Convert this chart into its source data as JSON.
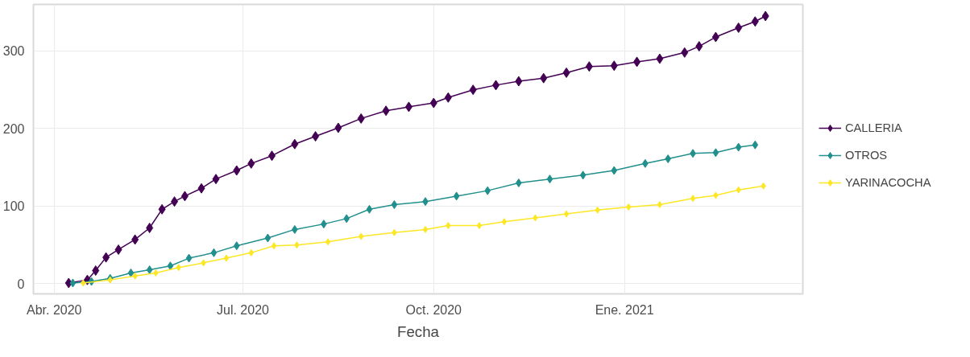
{
  "chart_data": {
    "type": "line",
    "xlabel": "Fecha",
    "marker": "diamond",
    "line_style": "solid",
    "grid": true,
    "legend": "right",
    "xlim": [
      "2020-03-22",
      "2021-03-28"
    ],
    "ylim": [
      -13,
      360
    ],
    "xticks": [
      {
        "value": "2020-04-01",
        "label": "Abr. 2020"
      },
      {
        "value": "2020-07-01",
        "label": "Jul. 2020"
      },
      {
        "value": "2020-10-01",
        "label": "Oct. 2020"
      },
      {
        "value": "2021-01-01",
        "label": "Ene. 2021"
      }
    ],
    "yticks": [
      0,
      100,
      200,
      300
    ],
    "series": [
      {
        "name": "CALLERIA",
        "color": "#440154",
        "x": [
          "2020-04-08",
          "2020-04-17",
          "2020-04-21",
          "2020-04-26",
          "2020-05-02",
          "2020-05-10",
          "2020-05-17",
          "2020-05-23",
          "2020-05-29",
          "2020-06-03",
          "2020-06-11",
          "2020-06-18",
          "2020-06-28",
          "2020-07-05",
          "2020-07-15",
          "2020-07-26",
          "2020-08-05",
          "2020-08-16",
          "2020-08-27",
          "2020-09-08",
          "2020-09-19",
          "2020-10-01",
          "2020-10-08",
          "2020-10-20",
          "2020-10-31",
          "2020-11-11",
          "2020-11-23",
          "2020-12-04",
          "2020-12-15",
          "2020-12-27",
          "2021-01-07",
          "2021-01-18",
          "2021-01-30",
          "2021-02-06",
          "2021-02-14",
          "2021-02-25",
          "2021-03-05",
          "2021-03-10"
        ],
        "values": [
          1,
          5,
          17,
          34,
          44,
          57,
          72,
          96,
          106,
          113,
          123,
          135,
          146,
          155,
          165,
          180,
          190,
          201,
          213,
          223,
          228,
          233,
          240,
          250,
          256,
          261,
          265,
          272,
          280,
          281,
          286,
          290,
          298,
          306,
          318,
          330,
          338,
          345
        ]
      },
      {
        "name": "OTROS",
        "color": "#21908d",
        "x": [
          "2020-04-10",
          "2020-04-19",
          "2020-04-28",
          "2020-05-08",
          "2020-05-17",
          "2020-05-27",
          "2020-06-05",
          "2020-06-17",
          "2020-06-28",
          "2020-07-13",
          "2020-07-26",
          "2020-08-09",
          "2020-08-20",
          "2020-08-31",
          "2020-09-12",
          "2020-09-27",
          "2020-10-12",
          "2020-10-27",
          "2020-11-11",
          "2020-11-26",
          "2020-12-12",
          "2020-12-27",
          "2021-01-11",
          "2021-01-22",
          "2021-02-03",
          "2021-02-14",
          "2021-02-25",
          "2021-03-05"
        ],
        "values": [
          1,
          3,
          7,
          14,
          18,
          23,
          33,
          40,
          49,
          59,
          70,
          77,
          84,
          96,
          102,
          106,
          113,
          120,
          130,
          135,
          140,
          146,
          155,
          161,
          168,
          169,
          176,
          179
        ]
      },
      {
        "name": "YARINACOCHA",
        "color": "#fde725",
        "x": [
          "2020-04-15",
          "2020-04-28",
          "2020-05-10",
          "2020-05-20",
          "2020-05-31",
          "2020-06-12",
          "2020-06-23",
          "2020-07-05",
          "2020-07-16",
          "2020-07-27",
          "2020-08-11",
          "2020-08-27",
          "2020-09-12",
          "2020-09-27",
          "2020-10-08",
          "2020-10-23",
          "2020-11-04",
          "2020-11-19",
          "2020-12-04",
          "2020-12-19",
          "2021-01-03",
          "2021-01-18",
          "2021-02-03",
          "2021-02-14",
          "2021-02-25",
          "2021-03-09"
        ],
        "values": [
          1,
          5,
          10,
          14,
          21,
          27,
          33,
          40,
          49,
          50,
          54,
          61,
          66,
          70,
          75,
          75,
          80,
          85,
          90,
          95,
          99,
          102,
          110,
          114,
          121,
          126
        ]
      }
    ]
  }
}
